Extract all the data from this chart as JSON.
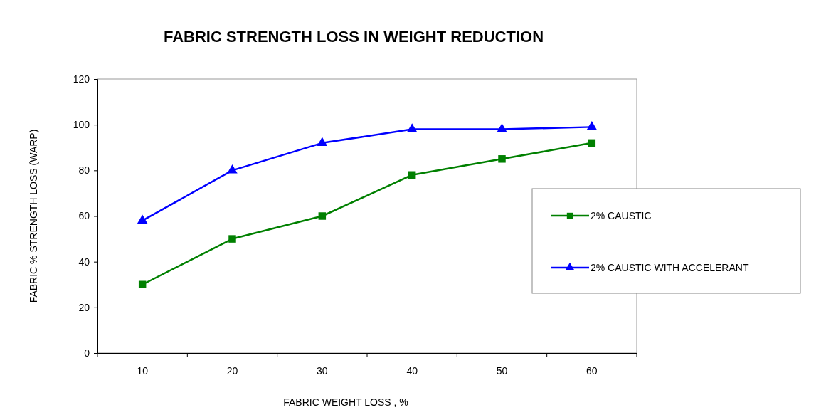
{
  "chart_data": {
    "type": "line",
    "title": "FABRIC STRENGTH LOSS IN WEIGHT REDUCTION",
    "xlabel": "FABRIC WEIGHT LOSS , %",
    "ylabel": "FABRIC % STRENGTH LOSS (WARP)",
    "categories": [
      "10",
      "20",
      "30",
      "40",
      "50",
      "60"
    ],
    "series": [
      {
        "name": "2% CAUSTIC",
        "color": "#008000",
        "marker": "square",
        "values": [
          30,
          50,
          60,
          78,
          85,
          92
        ]
      },
      {
        "name": "2% CAUSTIC WITH ACCELERANT",
        "color": "#0000ff",
        "marker": "triangle",
        "values": [
          58,
          80,
          92,
          98,
          98,
          99
        ]
      }
    ],
    "ylim": [
      0,
      120
    ],
    "yticks": [
      0,
      20,
      40,
      60,
      80,
      100,
      120
    ],
    "grid": false,
    "legend": "right",
    "line_style": "solid"
  }
}
